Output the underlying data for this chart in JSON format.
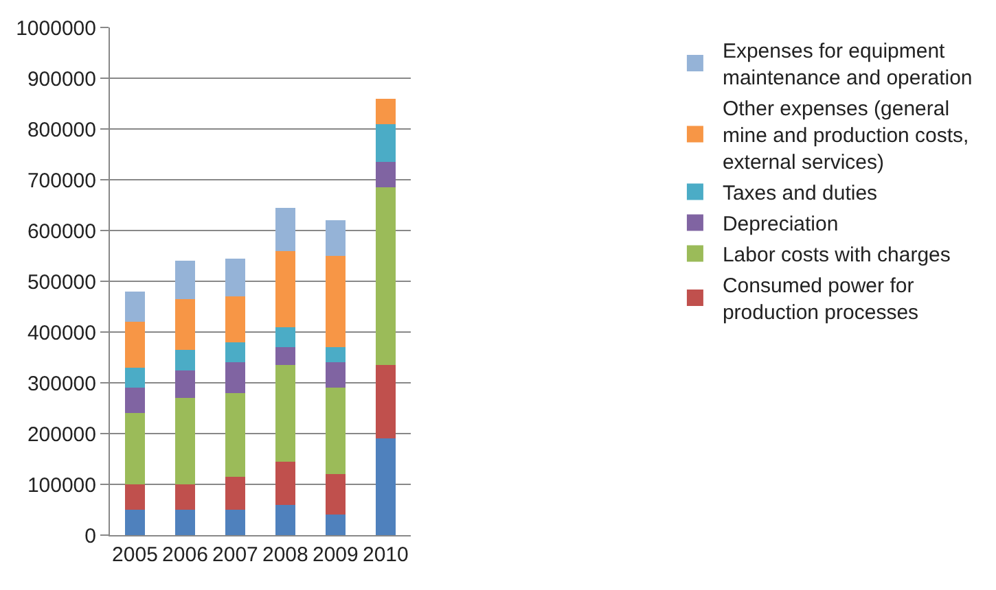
{
  "chart_data": {
    "type": "bar",
    "stacked": true,
    "categories": [
      "2005",
      "2006",
      "2007",
      "2008",
      "2009",
      "2010"
    ],
    "series": [
      {
        "color": "#4f81bd",
        "values": [
          50000,
          50000,
          50000,
          60000,
          40000,
          190000
        ]
      },
      {
        "name": "Consumed power for production processes",
        "color": "#c0504d",
        "values": [
          50000,
          50000,
          65000,
          85000,
          80000,
          145000
        ]
      },
      {
        "name": "Labor costs with charges",
        "color": "#9bbb59",
        "values": [
          140000,
          170000,
          165000,
          190000,
          170000,
          350000
        ]
      },
      {
        "name": "Depreciation",
        "color": "#8064a2",
        "values": [
          50000,
          55000,
          60000,
          35000,
          50000,
          50000
        ]
      },
      {
        "name": "Taxes and duties",
        "color": "#4bacc6",
        "values": [
          40000,
          40000,
          40000,
          40000,
          30000,
          75000
        ]
      },
      {
        "name": "Other expenses (general mine and production costs, external services)",
        "color": "#f79646",
        "values": [
          90000,
          100000,
          90000,
          150000,
          180000,
          50000
        ]
      },
      {
        "name": "Expenses for equipment maintenance and operation",
        "color": "#95b3d7",
        "values": [
          60000,
          75000,
          75000,
          85000,
          70000,
          null
        ]
      }
    ],
    "ylim": [
      0,
      1000000
    ],
    "yticks": [
      0,
      100000,
      200000,
      300000,
      400000,
      500000,
      600000,
      700000,
      800000,
      900000,
      1000000
    ],
    "grid": "y",
    "legend": "right"
  }
}
